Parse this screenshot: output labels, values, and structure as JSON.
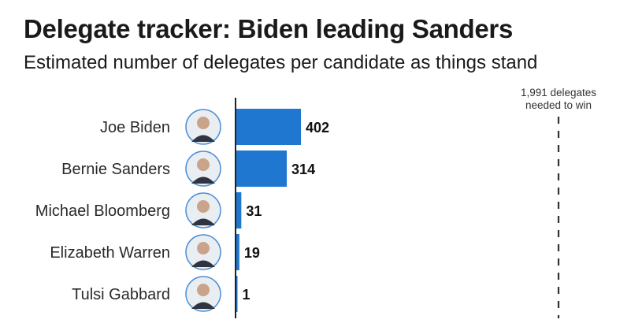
{
  "header": {
    "title": "Delegate tracker: Biden leading Sanders",
    "subtitle": "Estimated number of delegates per candidate as things stand"
  },
  "chart_data": {
    "type": "bar",
    "orientation": "horizontal",
    "categories": [
      "Joe Biden",
      "Bernie Sanders",
      "Michael Bloomberg",
      "Elizabeth Warren",
      "Tulsi Gabbard"
    ],
    "values": [
      402,
      314,
      31,
      19,
      1
    ],
    "value_labels": [
      "402",
      "314",
      "31",
      "19",
      "1"
    ],
    "bar_color": "#1f77d0",
    "threshold": {
      "value": 1991,
      "label_line1": "1,991 delegates",
      "label_line2": "needed to win"
    }
  }
}
